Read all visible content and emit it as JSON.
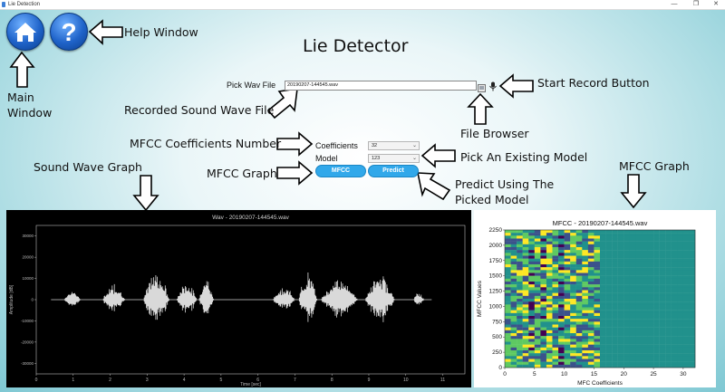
{
  "window": {
    "title": "Lie Detection",
    "minimize": "—",
    "maximize": "❐",
    "close": "✕"
  },
  "header": {
    "title": "Lie Detector"
  },
  "buttons": {
    "home_icon": "home-icon",
    "help_icon": "question-icon",
    "mfcc": "MFCC",
    "predict": "Predict"
  },
  "file": {
    "label": "Pick Wav File",
    "value": "20190207-144545.wav"
  },
  "coefficients": {
    "label": "Coefficients",
    "value": "32"
  },
  "model": {
    "label": "Model",
    "value": "123"
  },
  "annotations": {
    "help_window": "Help Window",
    "main_window_1": "Main",
    "main_window_2": "Window",
    "recorded_sound": "Recorded Sound Wave File",
    "start_record": "Start Record Button",
    "file_browser": "File Browser",
    "mfcc_coeff": "MFCC Coefficients Number",
    "mfcc_graph_btn": "MFCC Graph",
    "pick_model": "Pick An Existing Model",
    "predict_1": "Predict Using The",
    "predict_2": "Picked Model",
    "sound_wave_graph": "Sound Wave Graph",
    "mfcc_graph_right": "MFCC Graph"
  },
  "chart_data": [
    {
      "type": "line",
      "title": "Wav - 20190207-144545.wav",
      "xlabel": "Time [sec]",
      "ylabel": "Amplitude [dB]",
      "x_ticks": [
        "0",
        "1",
        "2",
        "3",
        "4",
        "5",
        "6",
        "7",
        "8",
        "9",
        "10",
        "11"
      ],
      "y_ticks": [
        "30000",
        "20000",
        "10000",
        "0",
        "-10000",
        "-20000",
        "-30000"
      ],
      "xlim": [
        0,
        11.6
      ],
      "ylim": [
        -35000,
        35000
      ],
      "segments": [
        {
          "start": 0.75,
          "end": 1.2,
          "amp": 5000
        },
        {
          "start": 1.8,
          "end": 2.4,
          "amp": 8500
        },
        {
          "start": 2.9,
          "end": 3.6,
          "amp": 15000
        },
        {
          "start": 3.8,
          "end": 4.35,
          "amp": 9000
        },
        {
          "start": 4.4,
          "end": 4.8,
          "amp": 12000
        },
        {
          "start": 6.4,
          "end": 7.0,
          "amp": 7000
        },
        {
          "start": 7.1,
          "end": 7.6,
          "amp": 14000
        },
        {
          "start": 7.7,
          "end": 8.7,
          "amp": 11000
        },
        {
          "start": 8.9,
          "end": 9.7,
          "amp": 13000
        },
        {
          "start": 10.2,
          "end": 10.5,
          "amp": 3500
        }
      ]
    },
    {
      "type": "heatmap",
      "title": "MFCC - 20190207-144545.wav",
      "xlabel": "MFC Coefficients",
      "ylabel": "MFCC Values",
      "x_ticks": [
        "0",
        "5",
        "10",
        "15",
        "20",
        "25",
        "30"
      ],
      "y_ticks": [
        "0",
        "250",
        "500",
        "750",
        "1000",
        "1250",
        "1500",
        "1750",
        "2000",
        "2250"
      ],
      "xlim": [
        0,
        32
      ],
      "ylim": [
        0,
        2250
      ],
      "colormap": [
        "#440154",
        "#3b528b",
        "#21918c",
        "#5ec962",
        "#fde725"
      ]
    }
  ]
}
